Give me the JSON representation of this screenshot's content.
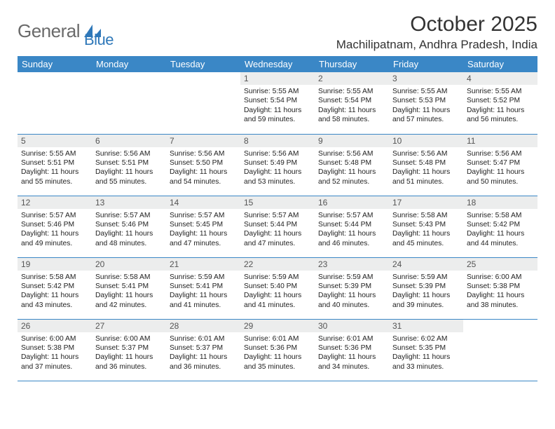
{
  "logo": {
    "word1": "General",
    "word2": "Blue"
  },
  "title": "October 2025",
  "location": "Machilipatnam, Andhra Pradesh, India",
  "colors": {
    "header_bg": "#3a87c6",
    "header_text": "#ffffff",
    "daynum_bg": "#eceded",
    "border": "#3a87c6",
    "logo_gray": "#6a6a6a",
    "logo_blue": "#2f78b9"
  },
  "day_headers": [
    "Sunday",
    "Monday",
    "Tuesday",
    "Wednesday",
    "Thursday",
    "Friday",
    "Saturday"
  ],
  "weeks": [
    [
      {
        "n": "",
        "empty": true
      },
      {
        "n": "",
        "empty": true
      },
      {
        "n": "",
        "empty": true
      },
      {
        "n": "1",
        "sunrise": "Sunrise: 5:55 AM",
        "sunset": "Sunset: 5:54 PM",
        "day1": "Daylight: 11 hours",
        "day2": "and 59 minutes."
      },
      {
        "n": "2",
        "sunrise": "Sunrise: 5:55 AM",
        "sunset": "Sunset: 5:54 PM",
        "day1": "Daylight: 11 hours",
        "day2": "and 58 minutes."
      },
      {
        "n": "3",
        "sunrise": "Sunrise: 5:55 AM",
        "sunset": "Sunset: 5:53 PM",
        "day1": "Daylight: 11 hours",
        "day2": "and 57 minutes."
      },
      {
        "n": "4",
        "sunrise": "Sunrise: 5:55 AM",
        "sunset": "Sunset: 5:52 PM",
        "day1": "Daylight: 11 hours",
        "day2": "and 56 minutes."
      }
    ],
    [
      {
        "n": "5",
        "sunrise": "Sunrise: 5:55 AM",
        "sunset": "Sunset: 5:51 PM",
        "day1": "Daylight: 11 hours",
        "day2": "and 55 minutes."
      },
      {
        "n": "6",
        "sunrise": "Sunrise: 5:56 AM",
        "sunset": "Sunset: 5:51 PM",
        "day1": "Daylight: 11 hours",
        "day2": "and 55 minutes."
      },
      {
        "n": "7",
        "sunrise": "Sunrise: 5:56 AM",
        "sunset": "Sunset: 5:50 PM",
        "day1": "Daylight: 11 hours",
        "day2": "and 54 minutes."
      },
      {
        "n": "8",
        "sunrise": "Sunrise: 5:56 AM",
        "sunset": "Sunset: 5:49 PM",
        "day1": "Daylight: 11 hours",
        "day2": "and 53 minutes."
      },
      {
        "n": "9",
        "sunrise": "Sunrise: 5:56 AM",
        "sunset": "Sunset: 5:48 PM",
        "day1": "Daylight: 11 hours",
        "day2": "and 52 minutes."
      },
      {
        "n": "10",
        "sunrise": "Sunrise: 5:56 AM",
        "sunset": "Sunset: 5:48 PM",
        "day1": "Daylight: 11 hours",
        "day2": "and 51 minutes."
      },
      {
        "n": "11",
        "sunrise": "Sunrise: 5:56 AM",
        "sunset": "Sunset: 5:47 PM",
        "day1": "Daylight: 11 hours",
        "day2": "and 50 minutes."
      }
    ],
    [
      {
        "n": "12",
        "sunrise": "Sunrise: 5:57 AM",
        "sunset": "Sunset: 5:46 PM",
        "day1": "Daylight: 11 hours",
        "day2": "and 49 minutes."
      },
      {
        "n": "13",
        "sunrise": "Sunrise: 5:57 AM",
        "sunset": "Sunset: 5:46 PM",
        "day1": "Daylight: 11 hours",
        "day2": "and 48 minutes."
      },
      {
        "n": "14",
        "sunrise": "Sunrise: 5:57 AM",
        "sunset": "Sunset: 5:45 PM",
        "day1": "Daylight: 11 hours",
        "day2": "and 47 minutes."
      },
      {
        "n": "15",
        "sunrise": "Sunrise: 5:57 AM",
        "sunset": "Sunset: 5:44 PM",
        "day1": "Daylight: 11 hours",
        "day2": "and 47 minutes."
      },
      {
        "n": "16",
        "sunrise": "Sunrise: 5:57 AM",
        "sunset": "Sunset: 5:44 PM",
        "day1": "Daylight: 11 hours",
        "day2": "and 46 minutes."
      },
      {
        "n": "17",
        "sunrise": "Sunrise: 5:58 AM",
        "sunset": "Sunset: 5:43 PM",
        "day1": "Daylight: 11 hours",
        "day2": "and 45 minutes."
      },
      {
        "n": "18",
        "sunrise": "Sunrise: 5:58 AM",
        "sunset": "Sunset: 5:42 PM",
        "day1": "Daylight: 11 hours",
        "day2": "and 44 minutes."
      }
    ],
    [
      {
        "n": "19",
        "sunrise": "Sunrise: 5:58 AM",
        "sunset": "Sunset: 5:42 PM",
        "day1": "Daylight: 11 hours",
        "day2": "and 43 minutes."
      },
      {
        "n": "20",
        "sunrise": "Sunrise: 5:58 AM",
        "sunset": "Sunset: 5:41 PM",
        "day1": "Daylight: 11 hours",
        "day2": "and 42 minutes."
      },
      {
        "n": "21",
        "sunrise": "Sunrise: 5:59 AM",
        "sunset": "Sunset: 5:41 PM",
        "day1": "Daylight: 11 hours",
        "day2": "and 41 minutes."
      },
      {
        "n": "22",
        "sunrise": "Sunrise: 5:59 AM",
        "sunset": "Sunset: 5:40 PM",
        "day1": "Daylight: 11 hours",
        "day2": "and 41 minutes."
      },
      {
        "n": "23",
        "sunrise": "Sunrise: 5:59 AM",
        "sunset": "Sunset: 5:39 PM",
        "day1": "Daylight: 11 hours",
        "day2": "and 40 minutes."
      },
      {
        "n": "24",
        "sunrise": "Sunrise: 5:59 AM",
        "sunset": "Sunset: 5:39 PM",
        "day1": "Daylight: 11 hours",
        "day2": "and 39 minutes."
      },
      {
        "n": "25",
        "sunrise": "Sunrise: 6:00 AM",
        "sunset": "Sunset: 5:38 PM",
        "day1": "Daylight: 11 hours",
        "day2": "and 38 minutes."
      }
    ],
    [
      {
        "n": "26",
        "sunrise": "Sunrise: 6:00 AM",
        "sunset": "Sunset: 5:38 PM",
        "day1": "Daylight: 11 hours",
        "day2": "and 37 minutes."
      },
      {
        "n": "27",
        "sunrise": "Sunrise: 6:00 AM",
        "sunset": "Sunset: 5:37 PM",
        "day1": "Daylight: 11 hours",
        "day2": "and 36 minutes."
      },
      {
        "n": "28",
        "sunrise": "Sunrise: 6:01 AM",
        "sunset": "Sunset: 5:37 PM",
        "day1": "Daylight: 11 hours",
        "day2": "and 36 minutes."
      },
      {
        "n": "29",
        "sunrise": "Sunrise: 6:01 AM",
        "sunset": "Sunset: 5:36 PM",
        "day1": "Daylight: 11 hours",
        "day2": "and 35 minutes."
      },
      {
        "n": "30",
        "sunrise": "Sunrise: 6:01 AM",
        "sunset": "Sunset: 5:36 PM",
        "day1": "Daylight: 11 hours",
        "day2": "and 34 minutes."
      },
      {
        "n": "31",
        "sunrise": "Sunrise: 6:02 AM",
        "sunset": "Sunset: 5:35 PM",
        "day1": "Daylight: 11 hours",
        "day2": "and 33 minutes."
      },
      {
        "n": "",
        "empty": true
      }
    ]
  ]
}
